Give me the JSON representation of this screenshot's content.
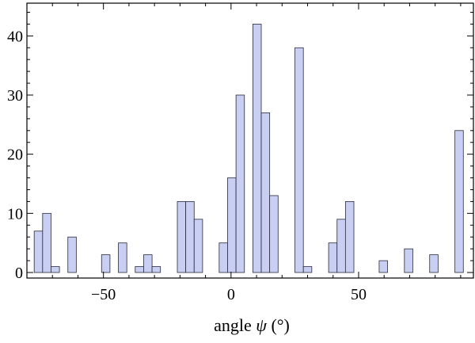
{
  "chart_data": {
    "type": "bar",
    "title": "",
    "xlabel": "angle ψ (°)",
    "xlabel_parts": {
      "main": "angle ",
      "symbol": "ψ",
      "unit": " (°)"
    },
    "ylabel": "",
    "xlim": [
      -80,
      95
    ],
    "ylim": [
      0,
      45
    ],
    "bin_width": 3.3,
    "x_ticks": [
      -50,
      0,
      50
    ],
    "x_tick_labels": [
      "−50",
      "0",
      "50"
    ],
    "y_ticks": [
      0,
      10,
      20,
      30,
      40
    ],
    "y_tick_labels": [
      "0",
      "10",
      "20",
      "30",
      "40"
    ],
    "grid": false,
    "colors": {
      "bar_fill": "#c8cff2",
      "bar_stroke": "#2a2a3a",
      "frame": "#000000"
    },
    "bars": [
      {
        "x": -75.5,
        "value": 7
      },
      {
        "x": -72.2,
        "value": 10
      },
      {
        "x": -68.9,
        "value": 1
      },
      {
        "x": -62.3,
        "value": 6
      },
      {
        "x": -49.1,
        "value": 3
      },
      {
        "x": -42.5,
        "value": 5
      },
      {
        "x": -35.9,
        "value": 1
      },
      {
        "x": -32.6,
        "value": 3
      },
      {
        "x": -29.3,
        "value": 1
      },
      {
        "x": -19.4,
        "value": 12
      },
      {
        "x": -16.1,
        "value": 12
      },
      {
        "x": -12.8,
        "value": 9
      },
      {
        "x": -3.0,
        "value": 5
      },
      {
        "x": 0.3,
        "value": 16
      },
      {
        "x": 3.6,
        "value": 30
      },
      {
        "x": 10.2,
        "value": 42
      },
      {
        "x": 13.5,
        "value": 27
      },
      {
        "x": 16.8,
        "value": 13
      },
      {
        "x": 26.7,
        "value": 38
      },
      {
        "x": 30.0,
        "value": 1
      },
      {
        "x": 39.9,
        "value": 5
      },
      {
        "x": 43.2,
        "value": 9
      },
      {
        "x": 46.5,
        "value": 12
      },
      {
        "x": 59.7,
        "value": 2
      },
      {
        "x": 69.6,
        "value": 4
      },
      {
        "x": 79.5,
        "value": 3
      },
      {
        "x": 89.4,
        "value": 24
      }
    ]
  }
}
